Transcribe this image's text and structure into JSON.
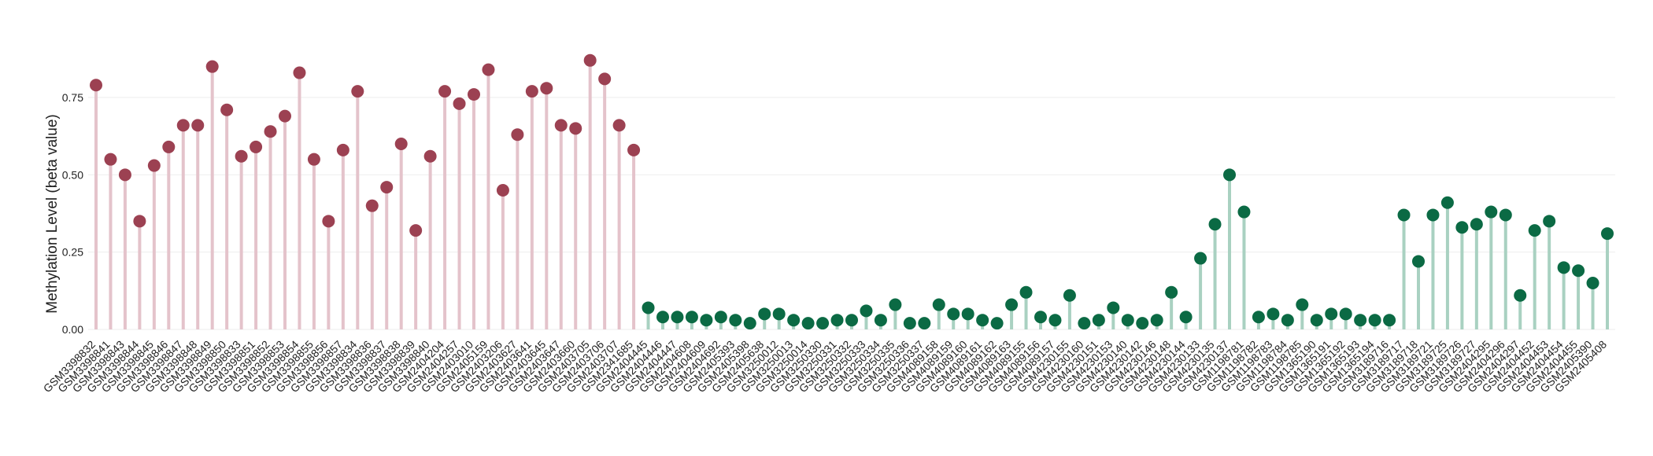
{
  "chart_data": {
    "type": "lollipop",
    "y_label": "Methylation Level (beta value)",
    "categories": [
      "GSM3398832",
      "GSM3398841",
      "GSM3398843",
      "GSM3398844",
      "GSM3398845",
      "GSM3398846",
      "GSM3398847",
      "GSM3398848",
      "GSM3398849",
      "GSM3398850",
      "GSM3398833",
      "GSM3398851",
      "GSM3398852",
      "GSM3398853",
      "GSM3398854",
      "GSM3398855",
      "GSM3398856",
      "GSM3398857",
      "GSM3398834",
      "GSM3398836",
      "GSM3398837",
      "GSM3398838",
      "GSM3398839",
      "GSM3398840",
      "GSM2404204",
      "GSM2404257",
      "GSM2403010",
      "GSM2405159",
      "GSM2403206",
      "GSM2403627",
      "GSM2403641",
      "GSM2403645",
      "GSM2403647",
      "GSM2403660",
      "GSM2403705",
      "GSM2403706",
      "GSM2403707",
      "GSM2341685",
      "GSM2404445",
      "GSM2404446",
      "GSM2404447",
      "GSM2404608",
      "GSM2404609",
      "GSM2404692",
      "GSM2405393",
      "GSM2405398",
      "GSM2405638",
      "GSM3250012",
      "GSM3250013",
      "GSM3250014",
      "GSM3250330",
      "GSM3250331",
      "GSM3250332",
      "GSM3250333",
      "GSM3250334",
      "GSM3250335",
      "GSM3250336",
      "GSM3250337",
      "GSM4089158",
      "GSM4089159",
      "GSM4089160",
      "GSM4089161",
      "GSM4089162",
      "GSM4089163",
      "GSM4089155",
      "GSM4089156",
      "GSM4089157",
      "GSM4230155",
      "GSM4230160",
      "GSM4230151",
      "GSM4230153",
      "GSM4230140",
      "GSM4230142",
      "GSM4230146",
      "GSM4230148",
      "GSM4230144",
      "GSM4230133",
      "GSM4230135",
      "GSM4230137",
      "GSM1198781",
      "GSM1198782",
      "GSM1198783",
      "GSM1198784",
      "GSM1198785",
      "GSM1365190",
      "GSM1365191",
      "GSM1365192",
      "GSM1365193",
      "GSM1365194",
      "GSM3189716",
      "GSM3189717",
      "GSM3189718",
      "GSM3189721",
      "GSM3189725",
      "GSM3189726",
      "GSM3189727",
      "GSM2404295",
      "GSM2404296",
      "GSM2404297",
      "GSM2404452",
      "GSM2404453",
      "GSM2404454",
      "GSM2404455",
      "GSM2405390",
      "GSM2405408"
    ],
    "series": [
      {
        "color": "#9c4152",
        "stem_color": "#e4c3cb",
        "values": [
          0.79,
          0.55,
          0.5,
          0.35,
          0.53,
          0.59,
          0.66,
          0.66,
          0.85,
          0.71,
          0.56,
          0.59,
          0.64,
          0.69,
          0.83,
          0.55,
          0.35,
          0.58,
          0.77,
          0.4,
          0.46,
          0.6,
          0.32,
          0.56,
          0.77,
          0.73,
          0.76,
          0.84,
          0.45,
          0.63,
          0.77,
          0.78,
          0.66,
          0.65,
          0.87,
          0.81,
          0.66,
          0.58,
          null,
          null,
          null,
          null,
          null,
          null,
          null,
          null,
          null,
          null,
          null,
          null,
          null,
          null,
          null,
          null,
          null,
          null,
          null,
          null,
          null,
          null,
          null,
          null,
          null,
          null,
          null,
          null,
          null,
          null,
          null,
          null,
          null,
          null,
          null,
          null,
          null,
          null,
          null,
          null,
          null,
          null,
          null,
          null,
          null,
          null,
          null,
          null,
          null,
          null,
          null,
          null,
          null,
          null,
          null,
          null,
          null,
          null,
          null,
          null,
          null,
          null,
          null,
          null,
          null,
          null,
          null
        ]
      },
      {
        "color": "#0b6a44",
        "stem_color": "#a9d1c1",
        "values": [
          null,
          null,
          null,
          null,
          null,
          null,
          null,
          null,
          null,
          null,
          null,
          null,
          null,
          null,
          null,
          null,
          null,
          null,
          null,
          null,
          null,
          null,
          null,
          null,
          null,
          null,
          null,
          null,
          null,
          null,
          null,
          null,
          null,
          null,
          null,
          null,
          null,
          null,
          0.07,
          0.04,
          0.04,
          0.04,
          0.03,
          0.04,
          0.03,
          0.02,
          0.05,
          0.05,
          0.03,
          0.02,
          0.02,
          0.03,
          0.03,
          0.06,
          0.03,
          0.08,
          0.02,
          0.02,
          0.08,
          0.05,
          0.05,
          0.03,
          0.02,
          0.08,
          0.12,
          0.04,
          0.03,
          0.11,
          0.02,
          0.03,
          0.07,
          0.03,
          0.02,
          0.03,
          0.12,
          0.04,
          0.23,
          0.34,
          0.5,
          0.38,
          0.04,
          0.05,
          0.03,
          0.08,
          0.03,
          0.05,
          0.05,
          0.03,
          0.03,
          0.03,
          0.37,
          0.22,
          0.37,
          0.41,
          0.33,
          0.34,
          0.38,
          0.37,
          0.11,
          0.32,
          0.35,
          0.2,
          0.19,
          0.15,
          0.31
        ]
      }
    ],
    "ylim": [
      0,
      0.9
    ],
    "yticks": [
      {
        "value": 0,
        "label": "0.00"
      },
      {
        "value": 0.25,
        "label": "0.25"
      },
      {
        "value": 0.5,
        "label": "0.50"
      },
      {
        "value": 0.75,
        "label": "0.75"
      }
    ],
    "grid": true
  }
}
